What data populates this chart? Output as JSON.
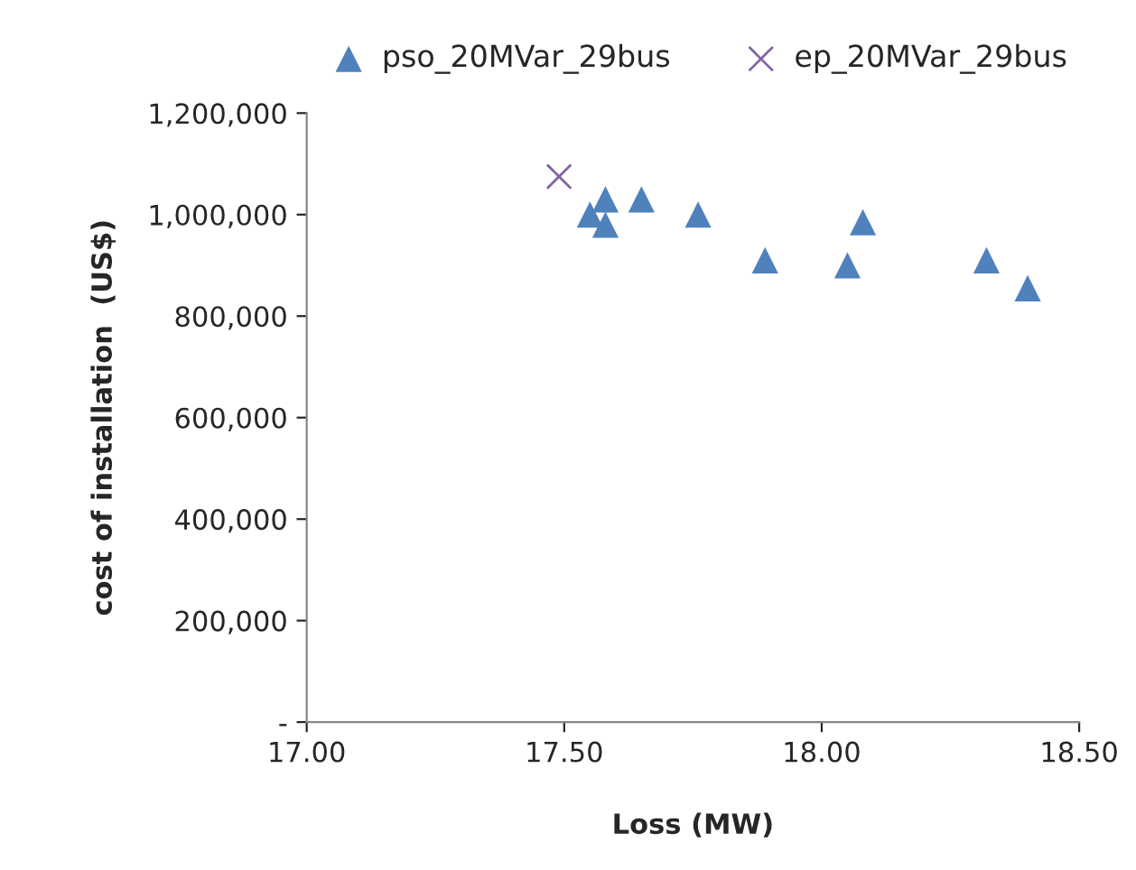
{
  "chart_data": {
    "type": "scatter",
    "xlabel": "Loss (MW)",
    "ylabel": "cost of installation  (US$)",
    "series": [
      {
        "name": "pso_20MVar_29bus",
        "color": "#4f81bd",
        "marker": "triangle",
        "x": [
          17.55,
          17.58,
          17.58,
          17.65,
          17.76,
          17.89,
          18.05,
          18.08,
          18.32,
          18.4
        ],
        "values": [
          1000000,
          1030000,
          980000,
          1030000,
          1000000,
          910000,
          900000,
          985000,
          910000,
          855000
        ]
      },
      {
        "name": "ep_20MVar_29bus",
        "color": "#8064a2",
        "marker": "cross",
        "x": [
          17.49
        ],
        "values": [
          1075000
        ]
      }
    ],
    "xlim": [
      17.0,
      18.5
    ],
    "xticks": [
      {
        "value": 17.0,
        "label": "17.00"
      },
      {
        "value": 17.5,
        "label": "17.50"
      },
      {
        "value": 18.0,
        "label": "18.00"
      },
      {
        "value": 18.5,
        "label": "18.50"
      }
    ],
    "ylim": [
      0,
      1200000
    ],
    "yticks": [
      {
        "value": 0,
        "label": "-"
      },
      {
        "value": 200000,
        "label": "200,000"
      },
      {
        "value": 400000,
        "label": "400,000"
      },
      {
        "value": 600000,
        "label": "600,000"
      },
      {
        "value": 800000,
        "label": "800,000"
      },
      {
        "value": 1000000,
        "label": "1,000,000"
      },
      {
        "value": 1200000,
        "label": "1,200,000"
      }
    ],
    "grid": false,
    "legend": "top"
  }
}
